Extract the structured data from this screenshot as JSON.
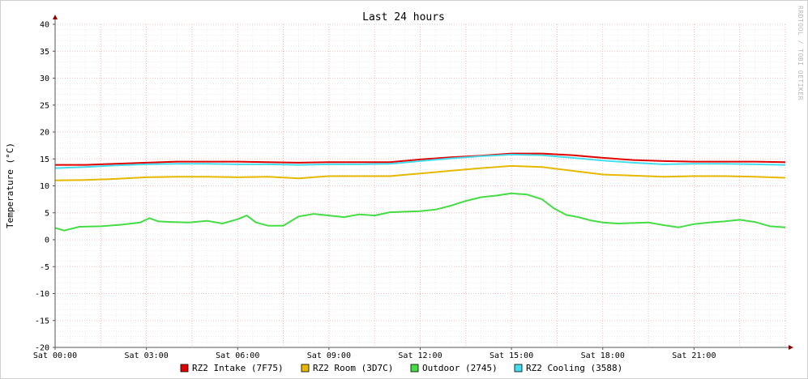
{
  "chart_data": {
    "type": "line",
    "title": "Last 24 hours",
    "ylabel": "Temperature (°C)",
    "xlabel": "",
    "watermark": "RRDTOOL / TOBI OETIKER",
    "ylim": [
      -20,
      40
    ],
    "y_ticks": [
      40,
      35,
      30,
      25,
      20,
      15,
      10,
      5,
      0,
      -5,
      -10,
      -15,
      -20
    ],
    "xlim": [
      0,
      24
    ],
    "x_ticks": [
      {
        "t": 0,
        "label": "Sat 00:00"
      },
      {
        "t": 3,
        "label": "Sat 03:00"
      },
      {
        "t": 6,
        "label": "Sat 06:00"
      },
      {
        "t": 9,
        "label": "Sat 09:00"
      },
      {
        "t": 12,
        "label": "Sat 12:00"
      },
      {
        "t": 15,
        "label": "Sat 15:00"
      },
      {
        "t": 18,
        "label": "Sat 18:00"
      },
      {
        "t": 21,
        "label": "Sat 21:00"
      }
    ],
    "grid": true,
    "legend_position": "bottom",
    "series": [
      {
        "name": "RZ2 Intake (7F75)",
        "color": "#e00000",
        "x": [
          0,
          1,
          2,
          3,
          4,
          5,
          6,
          7,
          8,
          9,
          10,
          11,
          12,
          13,
          14,
          15,
          16,
          17,
          18,
          19,
          20,
          21,
          22,
          23,
          24
        ],
        "y": [
          13.9,
          13.9,
          14.1,
          14.3,
          14.5,
          14.5,
          14.5,
          14.4,
          14.3,
          14.4,
          14.4,
          14.4,
          14.9,
          15.3,
          15.6,
          16.0,
          16.0,
          15.7,
          15.2,
          14.8,
          14.6,
          14.5,
          14.5,
          14.5,
          14.4
        ]
      },
      {
        "name": "RZ2 Room (3D7C)",
        "color": "#e6b800",
        "x": [
          0,
          1,
          2,
          3,
          4,
          5,
          6,
          7,
          8,
          9,
          10,
          11,
          12,
          13,
          14,
          15,
          16,
          17,
          18,
          19,
          20,
          21,
          22,
          23,
          24
        ],
        "y": [
          11.0,
          11.1,
          11.3,
          11.6,
          11.7,
          11.7,
          11.6,
          11.7,
          11.4,
          11.8,
          11.8,
          11.8,
          12.3,
          12.8,
          13.3,
          13.7,
          13.5,
          12.8,
          12.1,
          11.9,
          11.7,
          11.8,
          11.8,
          11.7,
          11.5
        ]
      },
      {
        "name": "Outdoor (2745)",
        "color": "#44dd44",
        "x": [
          0,
          0.3,
          0.8,
          1.5,
          2.2,
          2.8,
          3.1,
          3.4,
          3.8,
          4.4,
          5.0,
          5.5,
          6.0,
          6.3,
          6.6,
          7.0,
          7.5,
          8.0,
          8.5,
          9.0,
          9.5,
          10.0,
          10.5,
          11.0,
          11.5,
          12.0,
          12.5,
          13.0,
          13.5,
          14.0,
          14.5,
          15.0,
          15.5,
          16.0,
          16.4,
          16.8,
          17.2,
          17.6,
          18.0,
          18.5,
          19.0,
          19.5,
          20.0,
          20.5,
          21.0,
          21.5,
          22.0,
          22.5,
          23.0,
          23.5,
          24.0
        ],
        "y": [
          2.2,
          1.7,
          2.4,
          2.5,
          2.8,
          3.2,
          4.0,
          3.4,
          3.3,
          3.2,
          3.5,
          3.0,
          3.8,
          4.5,
          3.2,
          2.6,
          2.6,
          4.3,
          4.8,
          4.5,
          4.2,
          4.7,
          4.5,
          5.1,
          5.2,
          5.3,
          5.6,
          6.3,
          7.2,
          7.9,
          8.2,
          8.6,
          8.4,
          7.5,
          5.8,
          4.6,
          4.2,
          3.6,
          3.2,
          3.0,
          3.1,
          3.2,
          2.7,
          2.3,
          2.9,
          3.2,
          3.4,
          3.7,
          3.3,
          2.5,
          2.3
        ]
      },
      {
        "name": "RZ2 Cooling (3588)",
        "color": "#44ddee",
        "x": [
          0,
          1,
          2,
          3,
          4,
          5,
          6,
          7,
          8,
          9,
          10,
          11,
          12,
          13,
          14,
          15,
          16,
          17,
          18,
          19,
          20,
          21,
          22,
          23,
          24
        ],
        "y": [
          13.3,
          13.5,
          13.8,
          14.0,
          14.1,
          14.1,
          14.0,
          14.0,
          13.9,
          14.0,
          14.0,
          14.1,
          14.6,
          15.1,
          15.5,
          15.8,
          15.7,
          15.2,
          14.7,
          14.3,
          14.0,
          14.1,
          14.1,
          14.0,
          13.9
        ]
      }
    ]
  }
}
